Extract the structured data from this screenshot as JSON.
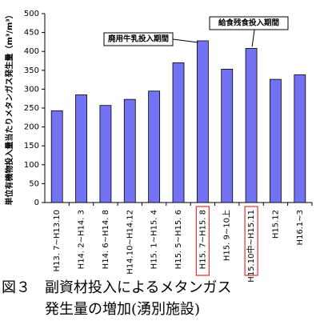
{
  "chart_data": {
    "type": "bar",
    "ylabel": "単位有機物投入量当たりメタンガス発生量（m³/m³）",
    "categories": [
      "H13. 7~H13.10",
      "H14. 2~H14. 3",
      "H14. 6~H14. 8",
      "H14.10~H14.12",
      "H15. 1~H15. 4",
      "H15. 5~H15. 6",
      "H15. 7~H15. 8",
      "H15. 9~10上",
      "H15.10中~H15.11",
      "H15.12",
      "H16.1~3"
    ],
    "values": [
      243,
      285,
      257,
      273,
      295,
      370,
      428,
      353,
      408,
      326,
      338
    ],
    "color": "#7272f2",
    "ylim": [
      0,
      500
    ],
    "yticks": [
      0,
      50,
      100,
      150,
      200,
      250,
      300,
      350,
      400,
      450,
      500
    ],
    "annotations": [
      {
        "text": "廃用牛乳投入期間"
      },
      {
        "text": "給食残食投入期間"
      }
    ],
    "caption": [
      "図３　副資材投入によるメタンガス",
      "　　　発生量の増加(湧別施設)"
    ]
  }
}
